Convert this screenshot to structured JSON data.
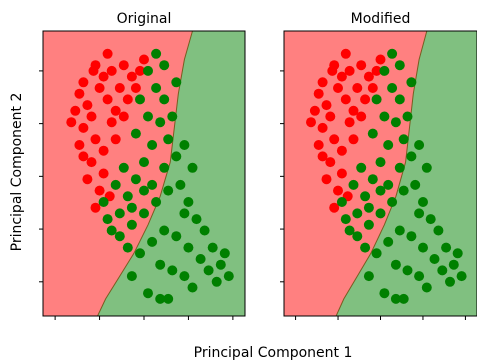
{
  "figure": {
    "xlabel": "Principal Component 1",
    "ylabel": "Principal Component 2"
  },
  "colors": {
    "class_a_region": "#ff8080",
    "class_b_region": "#80c080",
    "class_a_points": "#ff0000",
    "class_b_points": "#008000",
    "boundary": "#7a5c20"
  },
  "chart_data": [
    {
      "type": "scatter",
      "title": "Original",
      "xlabel": "",
      "ylabel": "",
      "x_ticks": 5,
      "y_ticks": 5,
      "series": [
        {
          "color": "#ff0000",
          "values": [
            [
              0.2,
              0.82
            ],
            [
              0.18,
              0.78
            ],
            [
              0.25,
              0.86
            ],
            [
              0.3,
              0.84
            ],
            [
              0.22,
              0.74
            ],
            [
              0.28,
              0.8
            ],
            [
              0.24,
              0.7
            ],
            [
              0.32,
              0.76
            ],
            [
              0.2,
              0.66
            ],
            [
              0.26,
              0.62
            ],
            [
              0.34,
              0.68
            ],
            [
              0.3,
              0.58
            ],
            [
              0.24,
              0.54
            ],
            [
              0.22,
              0.48
            ],
            [
              0.28,
              0.44
            ],
            [
              0.26,
              0.38
            ],
            [
              0.34,
              0.86
            ],
            [
              0.4,
              0.88
            ],
            [
              0.38,
              0.8
            ],
            [
              0.44,
              0.84
            ],
            [
              0.36,
              0.72
            ],
            [
              0.42,
              0.76
            ],
            [
              0.46,
              0.8
            ],
            [
              0.48,
              0.86
            ],
            [
              0.16,
              0.72
            ],
            [
              0.14,
              0.68
            ],
            [
              0.18,
              0.6
            ],
            [
              0.3,
              0.5
            ],
            [
              0.33,
              0.42
            ],
            [
              0.36,
              0.62
            ],
            [
              0.5,
              0.9
            ],
            [
              0.26,
              0.88
            ],
            [
              0.2,
              0.56
            ],
            [
              0.4,
              0.7
            ],
            [
              0.32,
              0.92
            ]
          ]
        },
        {
          "color": "#008000",
          "values": [
            [
              0.52,
              0.86
            ],
            [
              0.56,
              0.8
            ],
            [
              0.6,
              0.76
            ],
            [
              0.58,
              0.68
            ],
            [
              0.62,
              0.62
            ],
            [
              0.66,
              0.56
            ],
            [
              0.54,
              0.6
            ],
            [
              0.5,
              0.54
            ],
            [
              0.46,
              0.48
            ],
            [
              0.42,
              0.42
            ],
            [
              0.38,
              0.36
            ],
            [
              0.34,
              0.3
            ],
            [
              0.44,
              0.32
            ],
            [
              0.5,
              0.36
            ],
            [
              0.56,
              0.4
            ],
            [
              0.62,
              0.44
            ],
            [
              0.68,
              0.46
            ],
            [
              0.72,
              0.4
            ],
            [
              0.76,
              0.34
            ],
            [
              0.8,
              0.3
            ],
            [
              0.84,
              0.24
            ],
            [
              0.78,
              0.2
            ],
            [
              0.72,
              0.24
            ],
            [
              0.66,
              0.28
            ],
            [
              0.6,
              0.3
            ],
            [
              0.54,
              0.26
            ],
            [
              0.48,
              0.22
            ],
            [
              0.42,
              0.24
            ],
            [
              0.58,
              0.18
            ],
            [
              0.64,
              0.16
            ],
            [
              0.7,
              0.14
            ],
            [
              0.88,
              0.18
            ],
            [
              0.92,
              0.14
            ],
            [
              0.86,
              0.12
            ],
            [
              0.9,
              0.22
            ],
            [
              0.4,
              0.52
            ],
            [
              0.36,
              0.46
            ],
            [
              0.46,
              0.64
            ],
            [
              0.52,
              0.7
            ],
            [
              0.48,
              0.76
            ],
            [
              0.64,
              0.7
            ],
            [
              0.7,
              0.6
            ],
            [
              0.74,
              0.52
            ],
            [
              0.6,
              0.52
            ],
            [
              0.54,
              0.46
            ],
            [
              0.3,
              0.4
            ],
            [
              0.32,
              0.34
            ],
            [
              0.38,
              0.28
            ],
            [
              0.52,
              0.08
            ],
            [
              0.58,
              0.06
            ],
            [
              0.62,
              0.06
            ],
            [
              0.44,
              0.14
            ],
            [
              0.74,
              0.1
            ],
            [
              0.82,
              0.16
            ],
            [
              0.56,
              0.92
            ],
            [
              0.6,
              0.88
            ],
            [
              0.66,
              0.82
            ],
            [
              0.5,
              0.44
            ],
            [
              0.44,
              0.38
            ],
            [
              0.7,
              0.36
            ]
          ]
        }
      ]
    },
    {
      "type": "scatter",
      "title": "Modified",
      "xlabel": "",
      "ylabel": "",
      "x_ticks": 5,
      "y_ticks": 5,
      "series": [
        {
          "color": "#ff0000",
          "values": [
            [
              0.2,
              0.82
            ],
            [
              0.18,
              0.78
            ],
            [
              0.25,
              0.86
            ],
            [
              0.3,
              0.84
            ],
            [
              0.22,
              0.74
            ],
            [
              0.28,
              0.8
            ],
            [
              0.24,
              0.7
            ],
            [
              0.32,
              0.76
            ],
            [
              0.2,
              0.66
            ],
            [
              0.26,
              0.62
            ],
            [
              0.34,
              0.68
            ],
            [
              0.3,
              0.58
            ],
            [
              0.24,
              0.54
            ],
            [
              0.22,
              0.48
            ],
            [
              0.28,
              0.44
            ],
            [
              0.26,
              0.38
            ],
            [
              0.34,
              0.86
            ],
            [
              0.4,
              0.88
            ],
            [
              0.38,
              0.8
            ],
            [
              0.44,
              0.84
            ],
            [
              0.36,
              0.72
            ],
            [
              0.42,
              0.76
            ],
            [
              0.46,
              0.8
            ],
            [
              0.48,
              0.86
            ],
            [
              0.16,
              0.72
            ],
            [
              0.14,
              0.68
            ],
            [
              0.18,
              0.6
            ],
            [
              0.3,
              0.5
            ],
            [
              0.33,
              0.42
            ],
            [
              0.36,
              0.62
            ],
            [
              0.5,
              0.9
            ],
            [
              0.26,
              0.88
            ],
            [
              0.2,
              0.56
            ],
            [
              0.4,
              0.7
            ],
            [
              0.32,
              0.92
            ]
          ]
        },
        {
          "color": "#008000",
          "values": [
            [
              0.52,
              0.86
            ],
            [
              0.56,
              0.8
            ],
            [
              0.6,
              0.76
            ],
            [
              0.58,
              0.68
            ],
            [
              0.62,
              0.62
            ],
            [
              0.66,
              0.56
            ],
            [
              0.54,
              0.6
            ],
            [
              0.5,
              0.54
            ],
            [
              0.46,
              0.48
            ],
            [
              0.42,
              0.42
            ],
            [
              0.38,
              0.36
            ],
            [
              0.34,
              0.3
            ],
            [
              0.44,
              0.32
            ],
            [
              0.5,
              0.36
            ],
            [
              0.56,
              0.4
            ],
            [
              0.62,
              0.44
            ],
            [
              0.68,
              0.46
            ],
            [
              0.72,
              0.4
            ],
            [
              0.76,
              0.34
            ],
            [
              0.8,
              0.3
            ],
            [
              0.84,
              0.24
            ],
            [
              0.78,
              0.2
            ],
            [
              0.72,
              0.24
            ],
            [
              0.66,
              0.28
            ],
            [
              0.6,
              0.3
            ],
            [
              0.54,
              0.26
            ],
            [
              0.48,
              0.22
            ],
            [
              0.42,
              0.24
            ],
            [
              0.58,
              0.18
            ],
            [
              0.64,
              0.16
            ],
            [
              0.7,
              0.14
            ],
            [
              0.88,
              0.18
            ],
            [
              0.92,
              0.14
            ],
            [
              0.86,
              0.12
            ],
            [
              0.9,
              0.22
            ],
            [
              0.4,
              0.52
            ],
            [
              0.36,
              0.46
            ],
            [
              0.46,
              0.64
            ],
            [
              0.52,
              0.7
            ],
            [
              0.48,
              0.76
            ],
            [
              0.64,
              0.7
            ],
            [
              0.7,
              0.6
            ],
            [
              0.74,
              0.52
            ],
            [
              0.6,
              0.52
            ],
            [
              0.54,
              0.46
            ],
            [
              0.3,
              0.4
            ],
            [
              0.32,
              0.34
            ],
            [
              0.38,
              0.28
            ],
            [
              0.52,
              0.08
            ],
            [
              0.58,
              0.06
            ],
            [
              0.62,
              0.06
            ],
            [
              0.44,
              0.14
            ],
            [
              0.74,
              0.1
            ],
            [
              0.82,
              0.16
            ],
            [
              0.56,
              0.92
            ],
            [
              0.6,
              0.88
            ],
            [
              0.66,
              0.82
            ],
            [
              0.5,
              0.44
            ],
            [
              0.44,
              0.38
            ],
            [
              0.7,
              0.36
            ]
          ]
        }
      ]
    }
  ]
}
